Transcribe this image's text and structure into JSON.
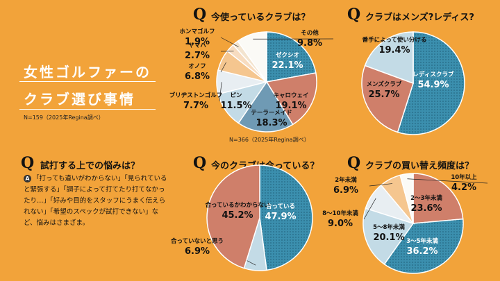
{
  "main": {
    "title_line1": "女性ゴルファーの",
    "title_line2": "クラブ選び事情",
    "note": "N=159（2025年Regina調べ）"
  },
  "q_mark": "Q",
  "q1": {
    "title": "今使っているクラブは？",
    "note": "N=366（2025年Regina調べ）"
  },
  "q2": {
    "title": "クラブはメンズ?レディス?"
  },
  "q3": {
    "title": "試打する上での悩みは？",
    "answer_badge": "A",
    "answer": "「打っても違いがわからない」「見られていると緊張する」「調子によって打てたり打てなかったり…」「好みや目的をスタッフにうまく伝えられない」「希望のスペックが試打できない」など、悩みはさまざま。"
  },
  "q4": {
    "title": "今のクラブは合っている？"
  },
  "q5": {
    "title": "クラブの買い替え頻度は？"
  },
  "colors": {
    "background": "#f2a33a",
    "teal": "#3b8fae",
    "salmon": "#cf7f6a",
    "lightblue": "#c3dbe6",
    "peach": "#f5c68f",
    "white": "#fbfaf6"
  },
  "chart_data": [
    {
      "type": "pie",
      "title": "今使っているクラブは？",
      "labels": [
        "ゼクシオ",
        "キャロウェイ",
        "テーラーメイド",
        "ピン",
        "ブリヂストンゴルフ",
        "オノフ",
        "ヤマハ",
        "ホンマゴルフ",
        "その他"
      ],
      "values": [
        22.1,
        19.1,
        18.3,
        11.5,
        7.7,
        6.8,
        2.7,
        1.9,
        9.8
      ],
      "value_labels": [
        "22.1%",
        "19.1%",
        "18.3%",
        "11.5%",
        "7.7%",
        "6.8%",
        "2.7%",
        "1.9%",
        "9.8%"
      ],
      "colors": [
        "#3b8fae",
        "#cf7f6a",
        "#6f9ab4",
        "#c3dbe6",
        "#e8eef2",
        "#f5c68f",
        "#f7dcc0",
        "#f3e4cf",
        "#fbfaf6"
      ]
    },
    {
      "type": "pie",
      "title": "クラブはメンズ?レディス?",
      "labels": [
        "レディスクラブ",
        "メンズクラブ",
        "番手によって使い分ける"
      ],
      "values": [
        54.9,
        25.7,
        19.4
      ],
      "value_labels": [
        "54.9%",
        "25.7%",
        "19.4%"
      ],
      "colors": [
        "#3b8fae",
        "#cf7f6a",
        "#c3dbe6"
      ]
    },
    {
      "type": "pie",
      "title": "今のクラブは合っている？",
      "labels": [
        "合っている",
        "合っていないと思う",
        "合っているかわからない"
      ],
      "values": [
        47.9,
        6.9,
        45.2
      ],
      "value_labels": [
        "47.9%",
        "6.9%",
        "45.2%"
      ],
      "colors": [
        "#3b8fae",
        "#c3dbe6",
        "#cf7f6a"
      ]
    },
    {
      "type": "pie",
      "title": "クラブの買い替え頻度は？",
      "labels": [
        "2〜3年未満",
        "3〜5年未満",
        "5〜8年未満",
        "8〜10年未満",
        "2年未満",
        "10年以上"
      ],
      "values": [
        23.6,
        36.2,
        20.1,
        9.0,
        6.9,
        4.2
      ],
      "value_labels": [
        "23.6%",
        "36.2%",
        "20.1%",
        "9.0%",
        "6.9%",
        "4.2%"
      ],
      "colors": [
        "#cf7f6a",
        "#3b8fae",
        "#c3dbe6",
        "#e8eef2",
        "#f5c68f",
        "#fbfaf6"
      ]
    }
  ]
}
